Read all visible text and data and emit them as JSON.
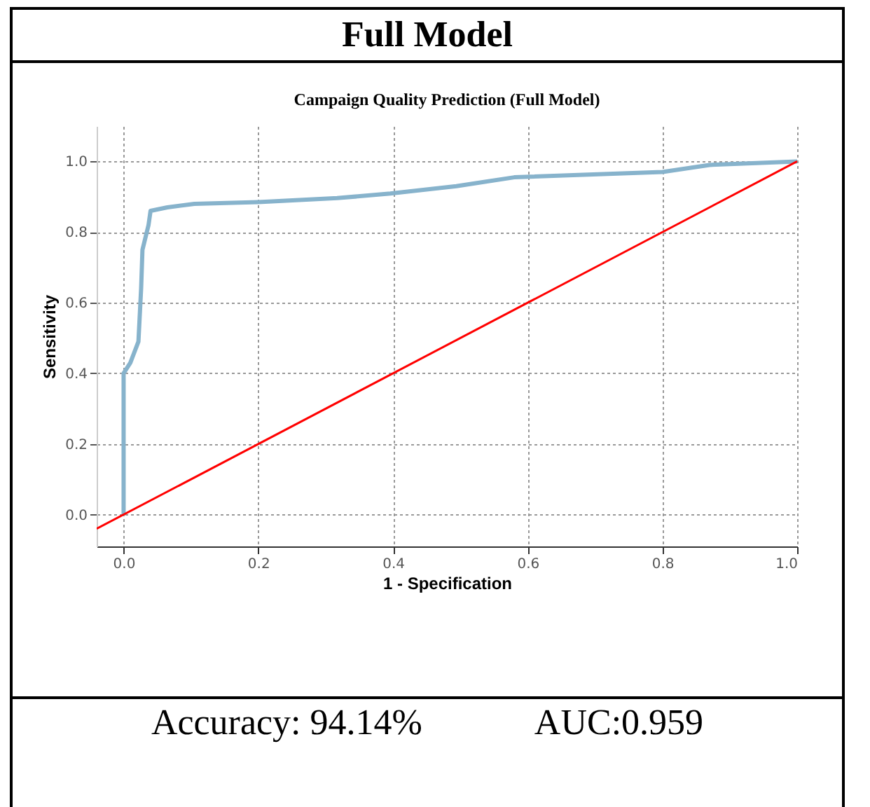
{
  "chart_data": {
    "type": "line",
    "title": "Full Model",
    "subtitle": "Campaign Quality Prediction (Full Model)",
    "xlabel": "1 - Specification",
    "ylabel": "Sensitivity",
    "annotations": [
      "Accuracy:  94.14%",
      "AUC:0.959"
    ],
    "xlim": [
      -0.04,
      1.0
    ],
    "ylim": [
      -0.09,
      1.1
    ],
    "xticks": [
      {
        "value": 0,
        "label": "0.0"
      },
      0.2,
      0.4,
      0.6,
      0.8,
      {
        "value": 1,
        "label": "1.0"
      }
    ],
    "yticks": [
      {
        "value": 0,
        "label": "0.0"
      },
      0.2,
      0.4,
      0.6,
      0.8,
      {
        "value": 1,
        "label": "1.0"
      }
    ],
    "grid": true,
    "line_style": "solid",
    "series": [
      {
        "color": "#87b3cc",
        "x": [
          0,
          0,
          0.01,
          0.022,
          0.026,
          0.028,
          0.037,
          0.04,
          0.065,
          0.105,
          0.2,
          0.317,
          0.396,
          0.494,
          0.58,
          0.8,
          0.87,
          1.0
        ],
        "values": [
          0,
          0.4,
          0.43,
          0.49,
          0.64,
          0.75,
          0.82,
          0.86,
          0.87,
          0.88,
          0.885,
          0.896,
          0.909,
          0.93,
          0.955,
          0.97,
          0.99,
          1.0
        ]
      },
      {
        "type": "line",
        "color": "#ff0000",
        "x": [
          -0.04,
          1.0
        ],
        "values": [
          -0.04,
          1.0
        ]
      }
    ]
  }
}
